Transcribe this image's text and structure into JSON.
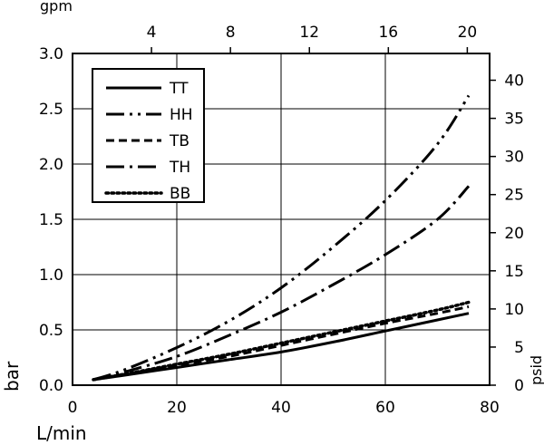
{
  "chart_data": {
    "type": "line",
    "x_bottom": {
      "label": "L/min",
      "range": [
        0,
        80
      ],
      "ticks": [
        "0",
        "20",
        "40",
        "60",
        "80"
      ]
    },
    "x_top": {
      "label": "gpm",
      "range": [
        0,
        21.13
      ],
      "ticks": [
        "4",
        "8",
        "12",
        "16",
        "20"
      ]
    },
    "y_left": {
      "label": "bar",
      "range": [
        0,
        3.0
      ],
      "ticks": [
        "0.0",
        "0.5",
        "1.0",
        "1.5",
        "2.0",
        "2.5",
        "3.0"
      ]
    },
    "y_right": {
      "label": "psid",
      "range": [
        0,
        43.51
      ],
      "ticks": [
        "0",
        "5",
        "10",
        "15",
        "20",
        "25",
        "30",
        "35",
        "40"
      ]
    },
    "grid": true,
    "legend_position": "top-left",
    "series": [
      {
        "name": "TT",
        "dash": "solid",
        "x": [
          4,
          10,
          20,
          30,
          40,
          50,
          60,
          70,
          76
        ],
        "y": [
          0.05,
          0.09,
          0.16,
          0.23,
          0.3,
          0.39,
          0.49,
          0.59,
          0.65
        ]
      },
      {
        "name": "HH",
        "dash": "long-dash-dot-dot",
        "x": [
          4,
          10,
          20,
          30,
          40,
          50,
          60,
          70,
          76
        ],
        "y": [
          0.05,
          0.14,
          0.34,
          0.58,
          0.88,
          1.25,
          1.67,
          2.18,
          2.62
        ]
      },
      {
        "name": "TB",
        "dash": "dashed",
        "x": [
          4,
          10,
          20,
          30,
          40,
          50,
          60,
          70,
          76
        ],
        "y": [
          0.05,
          0.1,
          0.18,
          0.26,
          0.36,
          0.46,
          0.56,
          0.65,
          0.71
        ]
      },
      {
        "name": "TH",
        "dash": "long-dash-dot",
        "x": [
          4,
          10,
          20,
          30,
          40,
          50,
          60,
          70,
          76
        ],
        "y": [
          0.05,
          0.12,
          0.26,
          0.45,
          0.66,
          0.91,
          1.18,
          1.5,
          1.8
        ]
      },
      {
        "name": "BB",
        "dash": "dotted",
        "x": [
          4,
          10,
          20,
          30,
          40,
          50,
          60,
          70,
          76
        ],
        "y": [
          0.05,
          0.1,
          0.19,
          0.28,
          0.38,
          0.48,
          0.58,
          0.68,
          0.75
        ]
      }
    ]
  }
}
